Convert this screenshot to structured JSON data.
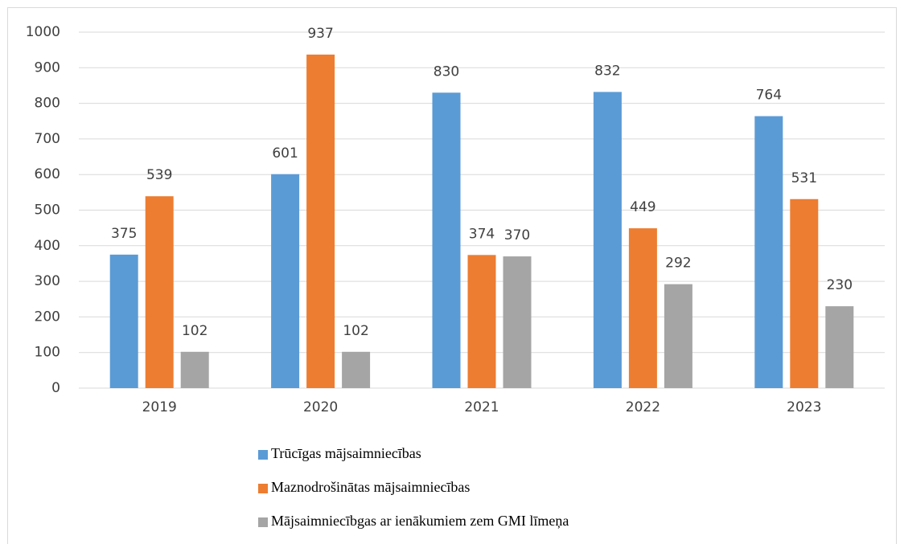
{
  "chart_data": {
    "type": "bar",
    "categories": [
      "2019",
      "2020",
      "2021",
      "2022",
      "2023"
    ],
    "series": [
      {
        "name": "Trūcīgas mājsaimniecības",
        "color": "#5b9bd5",
        "values": [
          375,
          601,
          830,
          832,
          764
        ]
      },
      {
        "name": "Maznodrošinātas mājsaimniecības",
        "color": "#ed7d31",
        "values": [
          539,
          937,
          374,
          449,
          531
        ]
      },
      {
        "name": "Mājsaimniecībgas ar ienākumiem zem GMI līmeņa",
        "color": "#a5a5a5",
        "values": [
          102,
          102,
          370,
          292,
          230
        ]
      }
    ],
    "ylim": [
      0,
      1000
    ],
    "yticks": [
      0,
      100,
      200,
      300,
      400,
      500,
      600,
      700,
      800,
      900,
      1000
    ],
    "grid": true,
    "legend": "bottom",
    "data_labels": true
  }
}
